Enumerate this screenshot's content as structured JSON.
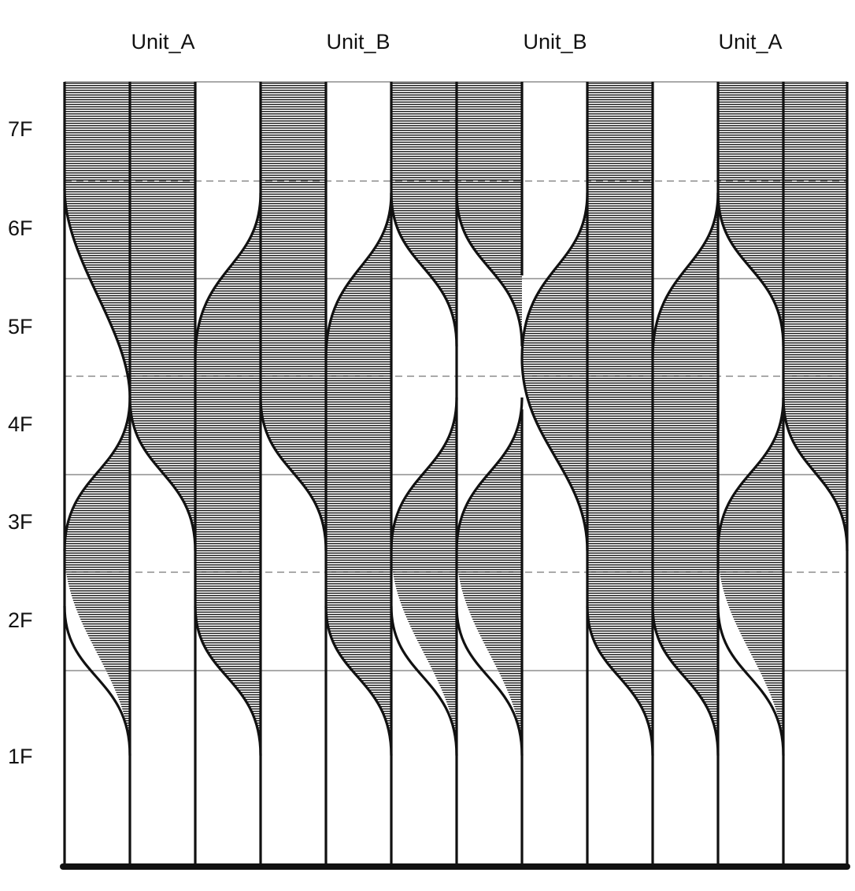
{
  "units": [
    "Unit_A",
    "Unit_B",
    "Unit_B",
    "Unit_A"
  ],
  "floors": [
    "7F",
    "6F",
    "5F",
    "4F",
    "3F",
    "2F",
    "1F"
  ],
  "colors": {
    "ink": "#111111",
    "hatch": "#222222",
    "grid": "#555555"
  }
}
